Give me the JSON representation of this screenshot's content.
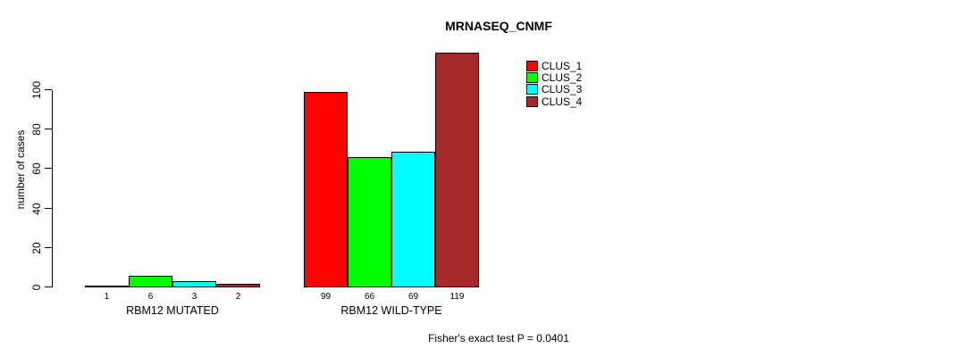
{
  "chart_data": {
    "type": "bar",
    "title": "MRNASEQ_CNMF",
    "ylabel": "number of cases",
    "xlabel": "",
    "categories": [
      "RBM12 MUTATED",
      "RBM12 WILD-TYPE"
    ],
    "series": [
      {
        "name": "CLUS_1",
        "color": "#FF0000",
        "values": [
          1,
          99
        ]
      },
      {
        "name": "CLUS_2",
        "color": "#00FF00",
        "values": [
          6,
          66
        ]
      },
      {
        "name": "CLUS_3",
        "color": "#00FFFF",
        "values": [
          3,
          69
        ]
      },
      {
        "name": "CLUS_4",
        "color": "#A52A2A",
        "values": [
          2,
          119
        ]
      }
    ],
    "bar_value_labels": [
      [
        1,
        6,
        3,
        2
      ],
      [
        99,
        66,
        69,
        119
      ]
    ],
    "yticks": [
      0,
      20,
      40,
      60,
      80,
      100
    ],
    "ylim": [
      0,
      119
    ],
    "grid": false,
    "legend_position": "top-right",
    "annotation": "Fisher's exact test P = 0.0401",
    "axis_color": "#000000",
    "text_color": "#000000",
    "background_color": "#FFFFFF"
  }
}
